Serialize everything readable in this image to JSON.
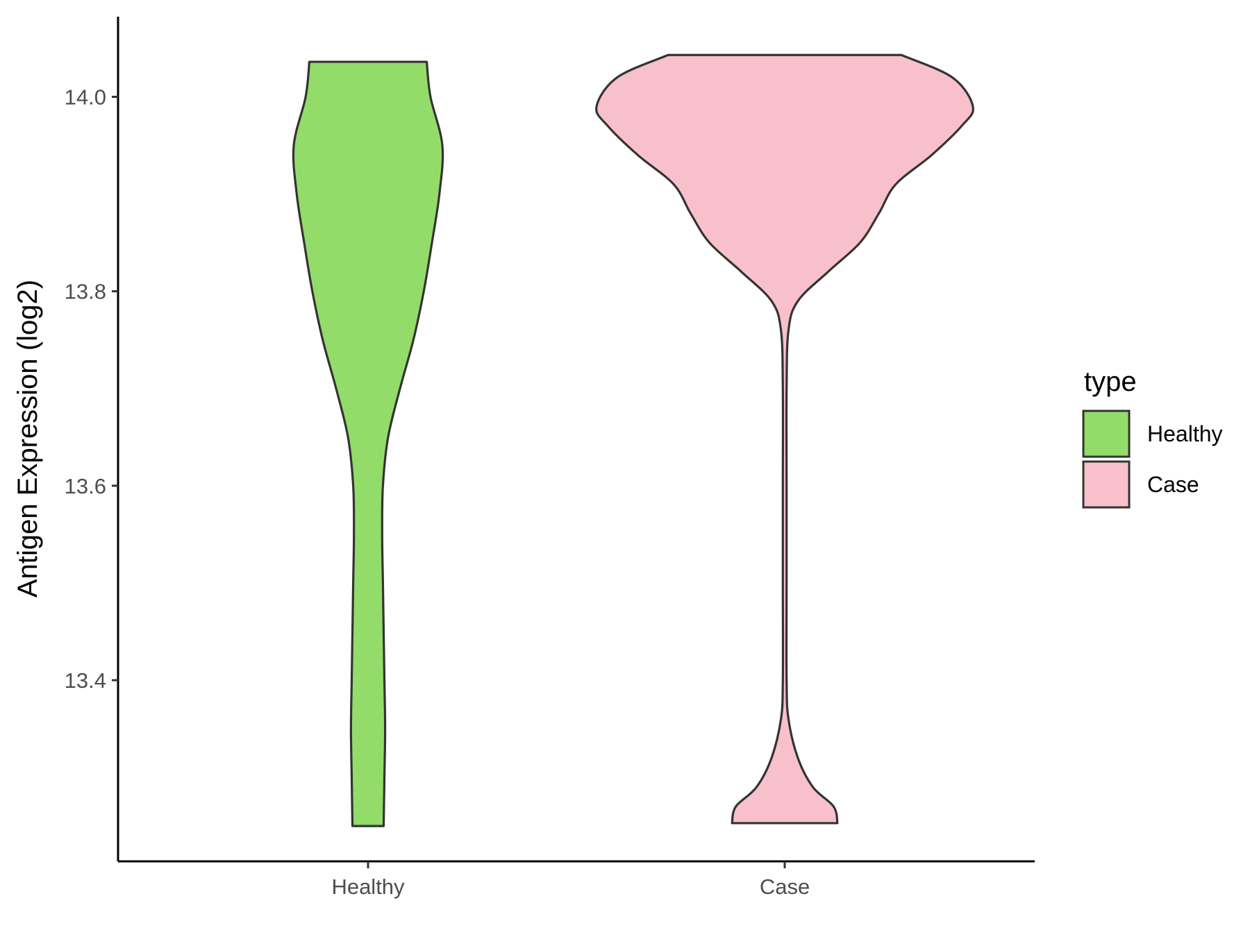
{
  "chart_data": {
    "type": "violin",
    "title": "",
    "xlabel": "",
    "ylabel": "Antigen Expression (log2)",
    "categories": [
      "Healthy",
      "Case"
    ],
    "y_ticks": [
      13.4,
      13.6,
      13.8,
      14.0
    ],
    "y_tick_labels": [
      "13.4",
      "13.6",
      "13.8",
      "14.0"
    ],
    "ylim": [
      13.19,
      14.08
    ],
    "grid": false,
    "legend": {
      "title": "type",
      "placement": "right",
      "entries": [
        {
          "label": "Healthy",
          "color": "#93dc6a"
        },
        {
          "label": "Case",
          "color": "#f8c0cb"
        }
      ]
    },
    "series": [
      {
        "category": "Healthy",
        "color": "#93dc6a",
        "y_min": 13.25,
        "y_max": 14.036,
        "density_profile": [
          [
            13.25,
            0.21
          ],
          [
            13.3,
            0.22
          ],
          [
            13.35,
            0.23
          ],
          [
            13.4,
            0.22
          ],
          [
            13.45,
            0.21
          ],
          [
            13.5,
            0.2
          ],
          [
            13.55,
            0.19
          ],
          [
            13.6,
            0.2
          ],
          [
            13.65,
            0.27
          ],
          [
            13.7,
            0.43
          ],
          [
            13.75,
            0.61
          ],
          [
            13.8,
            0.75
          ],
          [
            13.85,
            0.86
          ],
          [
            13.9,
            0.96
          ],
          [
            13.95,
            1.0
          ],
          [
            14.0,
            0.84
          ],
          [
            14.036,
            0.79
          ]
        ]
      },
      {
        "category": "Case",
        "color": "#f8c0cb",
        "y_min": 13.253,
        "y_max": 14.043,
        "density_profile": [
          [
            13.253,
            0.28
          ],
          [
            13.27,
            0.26
          ],
          [
            13.29,
            0.15
          ],
          [
            13.32,
            0.07
          ],
          [
            13.36,
            0.02
          ],
          [
            13.4,
            0.01
          ],
          [
            13.5,
            0.01
          ],
          [
            13.6,
            0.01
          ],
          [
            13.7,
            0.01
          ],
          [
            13.76,
            0.02
          ],
          [
            13.79,
            0.07
          ],
          [
            13.82,
            0.23
          ],
          [
            13.85,
            0.4
          ],
          [
            13.88,
            0.5
          ],
          [
            13.91,
            0.59
          ],
          [
            13.94,
            0.78
          ],
          [
            13.97,
            0.94
          ],
          [
            13.99,
            1.0
          ],
          [
            14.02,
            0.89
          ],
          [
            14.043,
            0.62
          ]
        ]
      }
    ]
  }
}
